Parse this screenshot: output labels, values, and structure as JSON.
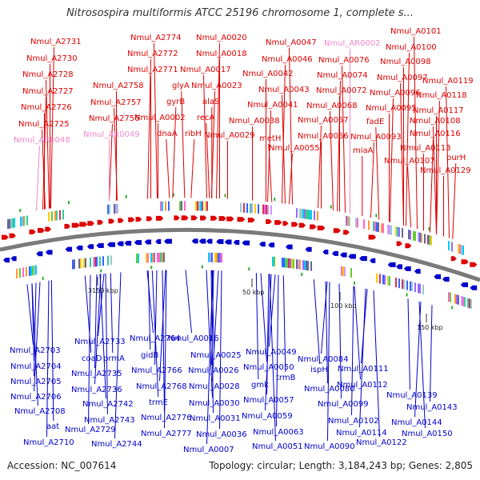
{
  "title": "Nitrosospira multiformis ATCC 25196 chromosome 1, complete s...",
  "footer": {
    "accession": "Accession: NC_007614",
    "stats": "Topology: circular; Length: 3,184,243 bp; Genes: 2,805"
  },
  "colors": {
    "forward_genes": "#dd0000",
    "reverse_genes": "#0000cc",
    "rna_genes": "#ee88cc",
    "backbone": "#777777",
    "minor_feature": "#33aa33"
  },
  "tick_labels": [
    "3150 kbp",
    "50 kbp",
    "100 kbp",
    "150 kbp"
  ],
  "labels_top": [
    {
      "text": "Nmul_A2731",
      "kind": "fwd"
    },
    {
      "text": "Nmul_A2730",
      "kind": "fwd"
    },
    {
      "text": "Nmul_A2728",
      "kind": "fwd"
    },
    {
      "text": "Nmul_A2727",
      "kind": "fwd"
    },
    {
      "text": "Nmul_A2726",
      "kind": "fwd"
    },
    {
      "text": "Nmul_A2725",
      "kind": "fwd"
    },
    {
      "text": "Nmul_AR0048",
      "kind": "rna"
    },
    {
      "text": "Nmul_A2758",
      "kind": "fwd"
    },
    {
      "text": "Nmul_A2757",
      "kind": "fwd"
    },
    {
      "text": "Nmul_A2756",
      "kind": "fwd"
    },
    {
      "text": "Nmul_AR0049",
      "kind": "rna"
    },
    {
      "text": "Nmul_A2774",
      "kind": "fwd"
    },
    {
      "text": "Nmul_A2772",
      "kind": "fwd"
    },
    {
      "text": "Nmul_A2771",
      "kind": "fwd"
    },
    {
      "text": "glyA",
      "kind": "fwd"
    },
    {
      "text": "gyrB",
      "kind": "fwd"
    },
    {
      "text": "Nmul_A0002",
      "kind": "fwd"
    },
    {
      "text": "dnaA",
      "kind": "fwd"
    },
    {
      "text": "Nmul_A0020",
      "kind": "fwd"
    },
    {
      "text": "Nmul_A0018",
      "kind": "fwd"
    },
    {
      "text": "Nmul_A0017",
      "kind": "fwd"
    },
    {
      "text": "Nmul_A0023",
      "kind": "fwd"
    },
    {
      "text": "alaS",
      "kind": "fwd"
    },
    {
      "text": "recA",
      "kind": "fwd"
    },
    {
      "text": "ribH",
      "kind": "fwd"
    },
    {
      "text": "Nmul_A0029",
      "kind": "fwd"
    },
    {
      "text": "Nmul_A0047",
      "kind": "fwd"
    },
    {
      "text": "Nmul_A0046",
      "kind": "fwd"
    },
    {
      "text": "Nmul_A0042",
      "kind": "fwd"
    },
    {
      "text": "Nmul_A0043",
      "kind": "fwd"
    },
    {
      "text": "Nmul_A0041",
      "kind": "fwd"
    },
    {
      "text": "Nmul_A0038",
      "kind": "fwd"
    },
    {
      "text": "metH",
      "kind": "fwd"
    },
    {
      "text": "Nmul_A0055",
      "kind": "fwd"
    },
    {
      "text": "Nmul_AR0002",
      "kind": "rna"
    },
    {
      "text": "Nmul_A0076",
      "kind": "fwd"
    },
    {
      "text": "Nmul_A0074",
      "kind": "fwd"
    },
    {
      "text": "Nmul_A0072",
      "kind": "fwd"
    },
    {
      "text": "Nmul_A0068",
      "kind": "fwd"
    },
    {
      "text": "Nmul_A0067",
      "kind": "fwd"
    },
    {
      "text": "Nmul_A0066",
      "kind": "fwd"
    },
    {
      "text": "Nmul_A0101",
      "kind": "fwd"
    },
    {
      "text": "Nmul_A0100",
      "kind": "fwd"
    },
    {
      "text": "Nmul_A0098",
      "kind": "fwd"
    },
    {
      "text": "Nmul_A0097",
      "kind": "fwd"
    },
    {
      "text": "Nmul_A0096",
      "kind": "fwd"
    },
    {
      "text": "Nmul_A0095",
      "kind": "fwd"
    },
    {
      "text": "fadE",
      "kind": "fwd"
    },
    {
      "text": "Nmul_A0093",
      "kind": "fwd"
    },
    {
      "text": "miaA",
      "kind": "fwd"
    },
    {
      "text": "Nmul_A0119",
      "kind": "fwd"
    },
    {
      "text": "Nmul_A0118",
      "kind": "fwd"
    },
    {
      "text": "Nmul_A0117",
      "kind": "fwd"
    },
    {
      "text": "Nmul_A0108",
      "kind": "fwd"
    },
    {
      "text": "Nmul_A0116",
      "kind": "fwd"
    },
    {
      "text": "Nmul_A0113",
      "kind": "fwd"
    },
    {
      "text": "Nmul_A0107",
      "kind": "fwd"
    },
    {
      "text": "purH",
      "kind": "fwd"
    },
    {
      "text": "Nmul_A0129",
      "kind": "fwd"
    }
  ],
  "labels_bottom": [
    {
      "text": "Nmul_A2703"
    },
    {
      "text": "Nmul_A2704"
    },
    {
      "text": "Nmul_A2705"
    },
    {
      "text": "Nmul_A2706"
    },
    {
      "text": "Nmul_A2708"
    },
    {
      "text": "aat"
    },
    {
      "text": "Nmul_A2710"
    },
    {
      "text": "Nmul_A2733"
    },
    {
      "text": "coaD"
    },
    {
      "text": "prmA"
    },
    {
      "text": "Nmul_A2735"
    },
    {
      "text": "Nmul_A2736"
    },
    {
      "text": "Nmul_A2742"
    },
    {
      "text": "Nmul_A2743"
    },
    {
      "text": "Nmul_A2729"
    },
    {
      "text": "Nmul_A2744"
    },
    {
      "text": "Nmul_A2764"
    },
    {
      "text": "gidB"
    },
    {
      "text": "Nmul_A2766"
    },
    {
      "text": "Nmul_A2768"
    },
    {
      "text": "trmE"
    },
    {
      "text": "Nmul_A2776"
    },
    {
      "text": "Nmul_A2777"
    },
    {
      "text": "Nmul_A0007"
    },
    {
      "text": "Nmul_A0016"
    },
    {
      "text": "Nmul_A0025"
    },
    {
      "text": "Nmul_A0026"
    },
    {
      "text": "Nmul_A0028"
    },
    {
      "text": "Nmul_A0030"
    },
    {
      "text": "Nmul_A0031"
    },
    {
      "text": "Nmul_A0036"
    },
    {
      "text": "Nmul_A0049"
    },
    {
      "text": "Nmul_A0050"
    },
    {
      "text": "gmk"
    },
    {
      "text": "Nmul_A0057"
    },
    {
      "text": "Nmul_A0059"
    },
    {
      "text": "Nmul_A0051"
    },
    {
      "text": "trmB"
    },
    {
      "text": "Nmul_A0063"
    },
    {
      "text": "Nmul_A0084"
    },
    {
      "text": "ispH"
    },
    {
      "text": "Nmul_A0080"
    },
    {
      "text": "Nmul_A0090"
    },
    {
      "text": "Nmul_A0111"
    },
    {
      "text": "Nmul_A0112"
    },
    {
      "text": "Nmul_A0099"
    },
    {
      "text": "Nmul_A0102"
    },
    {
      "text": "Nmul_A0114"
    },
    {
      "text": "Nmul_A0122"
    },
    {
      "text": "Nmul_A0139"
    },
    {
      "text": "Nmul_A0143"
    },
    {
      "text": "Nmul_A0144"
    },
    {
      "text": "Nmul_A0150"
    }
  ]
}
